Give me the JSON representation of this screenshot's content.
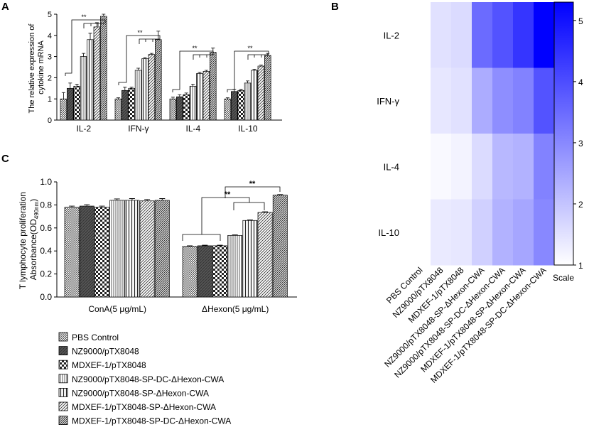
{
  "panel_labels": {
    "a": "A",
    "b": "B",
    "c": "C"
  },
  "legend": [
    "PBS Control",
    "NZ9000/pTX8048",
    "MDXEF-1/pTX8048",
    "NZ9000/pTX8048-SP-DC-ΔHexon-CWA",
    "NZ9000/pTX8048-SP-ΔHexon-CWA",
    "MDXEF-1/pTX8048-SP-ΔHexon-CWA",
    "MDXEF-1/pTX8048-SP-DC-ΔHexon-CWA"
  ],
  "series_patterns": [
    "pat-fine",
    "pat-dark",
    "pat-check",
    "pat-vert",
    "pat-vert2",
    "pat-diag",
    "pat-diag2"
  ],
  "colors": {
    "heat_low": "#ffffff",
    "heat_high": "#0000ff",
    "bar_stroke": "#000000"
  },
  "chart_data": [
    {
      "id": "A",
      "type": "bar",
      "ylabel": "The relative expression of cytokine mRNA",
      "ylim": [
        0,
        5
      ],
      "yticks": [
        "0",
        "1",
        "2",
        "3",
        "4",
        "5"
      ],
      "categories": [
        "IL-2",
        "IFN-γ",
        "IL-4",
        "IL-10"
      ],
      "series": [
        {
          "name": "PBS Control",
          "values": [
            1.0,
            1.0,
            1.0,
            1.0
          ],
          "errors": [
            0.3,
            0.05,
            0.08,
            0.05
          ]
        },
        {
          "name": "NZ9000/pTX8048",
          "values": [
            1.5,
            1.4,
            1.1,
            1.35
          ],
          "errors": [
            0.25,
            0.15,
            0.1,
            0.1
          ]
        },
        {
          "name": "MDXEF-1/pTX8048",
          "values": [
            1.6,
            1.5,
            1.2,
            1.4
          ],
          "errors": [
            0.1,
            0.05,
            0.08,
            0.05
          ]
        },
        {
          "name": "NZ9000/pTX8048-SP-DC-ΔHexon-CWA",
          "values": [
            3.0,
            2.35,
            1.6,
            1.75
          ],
          "errors": [
            0.15,
            0.1,
            0.1,
            0.1
          ]
        },
        {
          "name": "NZ9000/pTX8048-SP-ΔHexon-CWA",
          "values": [
            3.8,
            2.9,
            2.2,
            2.35
          ],
          "errors": [
            0.3,
            0.05,
            0.05,
            0.05
          ]
        },
        {
          "name": "MDXEF-1/pTX8048-SP-ΔHexon-CWA",
          "values": [
            4.4,
            3.1,
            2.3,
            2.55
          ],
          "errors": [
            0.2,
            0.05,
            0.05,
            0.05
          ]
        },
        {
          "name": "MDXEF-1/pTX8048-SP-DC-ΔHexon-CWA",
          "values": [
            4.9,
            3.8,
            3.2,
            3.05
          ],
          "errors": [
            0.1,
            0.4,
            0.2,
            0.1
          ]
        }
      ],
      "annotations": [
        "**",
        "**",
        "**",
        "**"
      ]
    },
    {
      "id": "B",
      "type": "heatmap",
      "rows": [
        "IL-2",
        "IFN-γ",
        "IL-4",
        "IL-10"
      ],
      "columns": [
        "PBS Control",
        "NZ9000/pTX8048",
        "MDXEF-1/pTX8048",
        "NZ9000/pTX8048-SP-ΔHexon-CWA",
        "NZ9000/pTX8048-SP-DC-ΔHexon-CWA",
        "MDXEF-1/pTX8048-SP-ΔHexon-CWA",
        "MDXEF-1/pTX8048-SP-DC-ΔHexon-CWA"
      ],
      "values": [
        [
          1.0,
          1.5,
          1.6,
          3.5,
          3.9,
          4.4,
          5.3
        ],
        [
          1.0,
          1.4,
          1.5,
          2.4,
          2.9,
          3.1,
          3.9
        ],
        [
          1.0,
          1.1,
          1.2,
          1.6,
          2.2,
          2.3,
          3.1
        ],
        [
          1.0,
          1.35,
          1.4,
          1.8,
          2.3,
          2.5,
          3.0
        ]
      ],
      "scale_range": [
        1,
        5.3
      ],
      "scale_ticks": [
        "1",
        "2",
        "3",
        "4",
        "5"
      ],
      "scale_label": "Scale"
    },
    {
      "id": "C",
      "type": "bar",
      "ylabel_line1": "T lymphocyte proliferation",
      "ylabel_line2": "Absorbance(OD",
      "ylabel_sub": "490nm",
      "ylabel_end": ")",
      "ylim": [
        0,
        1.0
      ],
      "yticks": [
        "0.0",
        "0.2",
        "0.4",
        "0.6",
        "0.8",
        "1.0"
      ],
      "categories": [
        "ConA(5 μg/mL)",
        "ΔHexon(5 μg/mL)"
      ],
      "series": [
        {
          "name": "PBS Control",
          "values": [
            0.78,
            0.44
          ],
          "errors": [
            0.01,
            0.005
          ]
        },
        {
          "name": "NZ9000/pTX8048",
          "values": [
            0.79,
            0.445
          ],
          "errors": [
            0.012,
            0.005
          ]
        },
        {
          "name": "MDXEF-1/pTX8048",
          "values": [
            0.78,
            0.445
          ],
          "errors": [
            0.01,
            0.005
          ]
        },
        {
          "name": "NZ9000/pTX8048-SP-DC-ΔHexon-CWA",
          "values": [
            0.84,
            0.535
          ],
          "errors": [
            0.012,
            0.005
          ]
        },
        {
          "name": "NZ9000/pTX8048-SP-ΔHexon-CWA",
          "values": [
            0.84,
            0.665
          ],
          "errors": [
            0.015,
            0.005
          ]
        },
        {
          "name": "MDXEF-1/pTX8048-SP-ΔHexon-CWA",
          "values": [
            0.835,
            0.735
          ],
          "errors": [
            0.012,
            0.005
          ]
        },
        {
          "name": "MDXEF-1/pTX8048-SP-DC-ΔHexon-CWA",
          "values": [
            0.84,
            0.885
          ],
          "errors": [
            0.015,
            0.005
          ]
        }
      ],
      "annotations": [
        "**",
        "**"
      ]
    }
  ]
}
